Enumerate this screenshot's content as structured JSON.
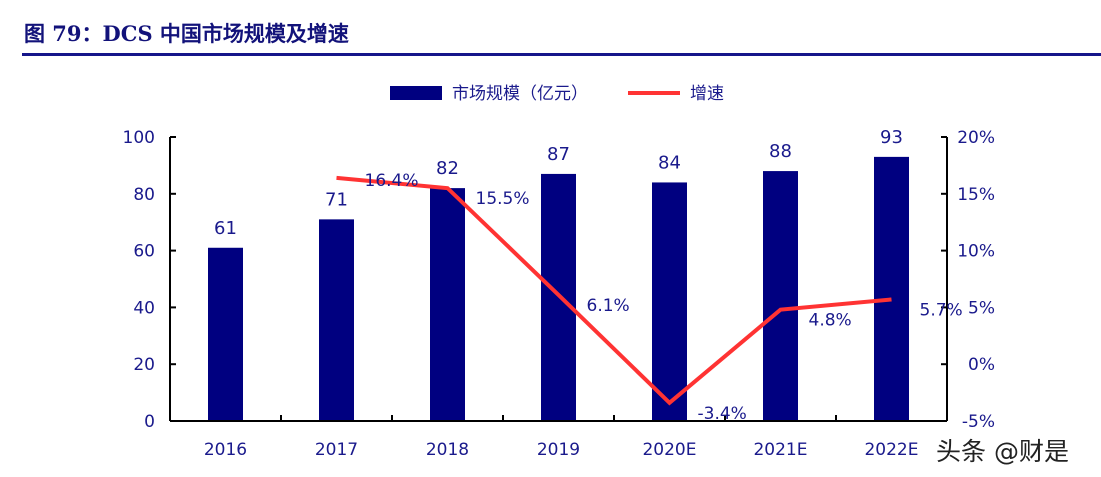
{
  "title": "图 79：DCS 中国市场规模及增速",
  "watermark": "头条 @财是",
  "chart_data": {
    "type": "bar+line",
    "categories": [
      "2016",
      "2017",
      "2018",
      "2019",
      "2020E",
      "2021E",
      "2022E"
    ],
    "series": [
      {
        "name": "市场规模（亿元）",
        "type": "bar",
        "axis": "left",
        "values": [
          61,
          71,
          82,
          87,
          84,
          88,
          93
        ],
        "labels": [
          "61",
          "71",
          "82",
          "87",
          "84",
          "88",
          "93"
        ],
        "color": "#000080"
      },
      {
        "name": "增速",
        "type": "line",
        "axis": "right",
        "values": [
          null,
          16.4,
          15.5,
          6.1,
          -3.4,
          4.8,
          5.7
        ],
        "labels": [
          "",
          "16.4%",
          "15.5%",
          "6.1%",
          "-3.4%",
          "4.8%",
          "5.7%"
        ],
        "color": "#ff3333"
      }
    ],
    "left_axis": {
      "range": [
        0,
        100
      ],
      "ticks": [
        "0",
        "20",
        "40",
        "60",
        "80",
        "100"
      ]
    },
    "right_axis": {
      "range": [
        -5,
        20
      ],
      "ticks": [
        "-5%",
        "0%",
        "5%",
        "10%",
        "15%",
        "20%"
      ]
    },
    "legend_placement": "top",
    "grid": false
  }
}
